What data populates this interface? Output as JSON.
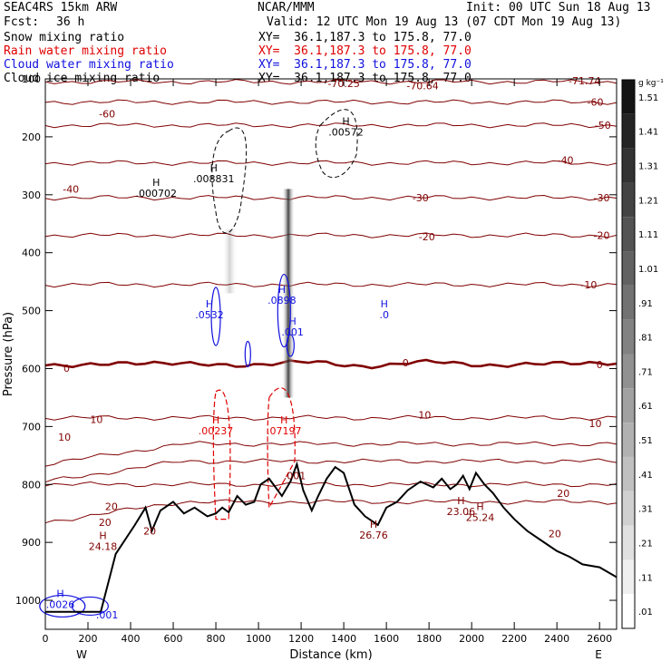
{
  "header": {
    "model": "SEAC4RS 15km ARW",
    "center": "NCAR/MMM",
    "init": "Init: 00 UTC Sun 18 Aug 13",
    "fcst_label": "Fcst:",
    "fcst_value": "36 h",
    "valid": "Valid: 12 UTC Mon 19 Aug 13 (07 CDT Mon 19 Aug 13)",
    "lines": [
      {
        "name": "Snow mixing ratio",
        "xy": "XY=  36.1,187.3 to 175.8, 77.0",
        "color": "#000000"
      },
      {
        "name": "Rain water mixing ratio",
        "xy": "XY=  36.1,187.3 to 175.8, 77.0",
        "color": "#e00000"
      },
      {
        "name": "Cloud water mixing ratio",
        "xy": "XY=  36.1,187.3 to 175.8, 77.0",
        "color": "#1010e0"
      },
      {
        "name": "Cloud ice mixing ratio",
        "xy": "XY=  36.1,187.3 to 175.8, 77.0",
        "color": "#000000"
      }
    ]
  },
  "chart_data": {
    "type": "contour-cross-section",
    "xlabel": "Distance (km)",
    "ylabel": "Pressure (hPa)",
    "xlim": [
      0,
      2680
    ],
    "ylim": [
      1050,
      100
    ],
    "x_ticks": [
      "0",
      "200",
      "400",
      "600",
      "800",
      "1000",
      "1200",
      "1400",
      "1600",
      "1800",
      "2000",
      "2200",
      "2400",
      "2600"
    ],
    "y_ticks": [
      "100",
      "200",
      "300",
      "400",
      "500",
      "600",
      "700",
      "800",
      "900",
      "1000"
    ],
    "end_labels": {
      "left": "W",
      "right": "E"
    },
    "colorbar": {
      "unit": "g kg⁻¹",
      "labels": [
        "1.51",
        "1.41",
        "1.31",
        "1.21",
        "1.11",
        "1.01",
        ".91",
        ".81",
        ".71",
        ".61",
        ".51",
        ".41",
        ".31",
        ".21",
        ".11",
        ".01"
      ]
    },
    "temperature_contours": [
      {
        "value": "-70",
        "pressure": 105
      },
      {
        "value": "-60",
        "pressure": 140
      },
      {
        "value": "-50",
        "pressure": 180
      },
      {
        "value": "-40",
        "pressure": 245
      },
      {
        "value": "-30",
        "pressure": 305
      },
      {
        "value": "-20",
        "pressure": 370
      },
      {
        "value": "-10",
        "pressure": 455
      },
      {
        "value": "0",
        "pressure": 592
      },
      {
        "value": "10",
        "pressure": 685
      },
      {
        "value": "20",
        "pressure": 800
      }
    ],
    "contour_labels": [
      {
        "text": "-70.25",
        "x": 1400,
        "p": 108,
        "color": "#800000"
      },
      {
        "text": "-70.64",
        "x": 1770,
        "p": 112,
        "color": "#800000"
      },
      {
        "text": "-71.74",
        "x": 2530,
        "p": 103,
        "color": "#800000"
      },
      {
        "text": "-60",
        "x": 290,
        "p": 160,
        "color": "#800000"
      },
      {
        "text": "-60",
        "x": 2580,
        "p": 140,
        "color": "#800000"
      },
      {
        "text": "-50",
        "x": 2615,
        "p": 180,
        "color": "#800000"
      },
      {
        "text": "-40",
        "x": 120,
        "p": 290,
        "color": "#800000"
      },
      {
        "text": "-40",
        "x": 2440,
        "p": 240,
        "color": "#800000"
      },
      {
        "text": "-30",
        "x": 1760,
        "p": 305,
        "color": "#800000"
      },
      {
        "text": "-30",
        "x": 2610,
        "p": 305,
        "color": "#800000"
      },
      {
        "text": "-20",
        "x": 1790,
        "p": 372,
        "color": "#800000"
      },
      {
        "text": "-20",
        "x": 2610,
        "p": 370,
        "color": "#800000"
      },
      {
        "text": "-10",
        "x": 2550,
        "p": 455,
        "color": "#800000"
      },
      {
        "text": "0",
        "x": 100,
        "p": 599,
        "color": "#800000"
      },
      {
        "text": "0",
        "x": 1690,
        "p": 590,
        "color": "#800000"
      },
      {
        "text": "0",
        "x": 2600,
        "p": 593,
        "color": "#800000"
      },
      {
        "text": "10",
        "x": 240,
        "p": 688,
        "color": "#800000"
      },
      {
        "text": "10",
        "x": 90,
        "p": 718,
        "color": "#800000"
      },
      {
        "text": "10",
        "x": 1780,
        "p": 680,
        "color": "#800000"
      },
      {
        "text": "10",
        "x": 2580,
        "p": 695,
        "color": "#800000"
      },
      {
        "text": "20",
        "x": 310,
        "p": 838,
        "color": "#800000"
      },
      {
        "text": "20",
        "x": 280,
        "p": 865,
        "color": "#800000"
      },
      {
        "text": "20",
        "x": 490,
        "p": 880,
        "color": "#800000"
      },
      {
        "text": "20",
        "x": 2430,
        "p": 815,
        "color": "#800000"
      },
      {
        "text": "20",
        "x": 2390,
        "p": 885,
        "color": "#800000"
      }
    ],
    "maxima_labels": [
      {
        "h": "H",
        "v": ".000702",
        "x": 520,
        "p": 300,
        "color": "#000000"
      },
      {
        "h": "H",
        "v": ".008831",
        "x": 790,
        "p": 275,
        "color": "#000000"
      },
      {
        "h": "H",
        "v": ".00572",
        "x": 1410,
        "p": 195,
        "color": "#000000"
      },
      {
        "h": "H",
        "v": ".0532",
        "x": 770,
        "p": 510,
        "color": "#1010e0"
      },
      {
        "h": "H",
        "v": ".0898",
        "x": 1110,
        "p": 485,
        "color": "#1010e0"
      },
      {
        "h": "H",
        "v": ".001",
        "x": 1160,
        "p": 540,
        "color": "#1010e0"
      },
      {
        "h": "H",
        "v": ".0",
        "x": 1590,
        "p": 510,
        "color": "#1010e0"
      },
      {
        "h": "H",
        "v": ".00237",
        "x": 800,
        "p": 710,
        "color": "#e00000"
      },
      {
        "h": "H",
        "v": ".07197",
        "x": 1120,
        "p": 710,
        "color": "#e00000"
      },
      {
        "h": "",
        "v": ".001",
        "x": 1170,
        "p": 788,
        "color": "#800000"
      },
      {
        "h": "H",
        "v": "24.18",
        "x": 270,
        "p": 910,
        "color": "#800000"
      },
      {
        "h": "H",
        "v": "26.76",
        "x": 1540,
        "p": 890,
        "color": "#800000"
      },
      {
        "h": "H",
        "v": "23.06",
        "x": 1950,
        "p": 850,
        "color": "#800000"
      },
      {
        "h": "H",
        "v": "25.24",
        "x": 2040,
        "p": 860,
        "color": "#800000"
      },
      {
        "h": "H",
        "v": ".0026",
        "x": 70,
        "p": 1010,
        "color": "#1010e0"
      },
      {
        "h": "",
        ".v": "",
        "v": "",
        "x": 0,
        "p": 0,
        "color": "#000000"
      },
      {
        "h": "",
        "v": ".001",
        "x": 290,
        "p": 1028,
        "color": "#1010e0"
      }
    ],
    "terrain": [
      [
        0,
        1020
      ],
      [
        260,
        1020
      ],
      [
        330,
        920
      ],
      [
        420,
        870
      ],
      [
        470,
        840
      ],
      [
        500,
        880
      ],
      [
        540,
        845
      ],
      [
        600,
        830
      ],
      [
        650,
        850
      ],
      [
        700,
        840
      ],
      [
        760,
        855
      ],
      [
        800,
        850
      ],
      [
        830,
        840
      ],
      [
        860,
        848
      ],
      [
        900,
        820
      ],
      [
        940,
        835
      ],
      [
        980,
        830
      ],
      [
        1010,
        800
      ],
      [
        1050,
        790
      ],
      [
        1080,
        805
      ],
      [
        1110,
        820
      ],
      [
        1150,
        795
      ],
      [
        1180,
        765
      ],
      [
        1210,
        810
      ],
      [
        1250,
        845
      ],
      [
        1280,
        820
      ],
      [
        1320,
        790
      ],
      [
        1360,
        770
      ],
      [
        1400,
        780
      ],
      [
        1450,
        835
      ],
      [
        1500,
        855
      ],
      [
        1560,
        870
      ],
      [
        1600,
        840
      ],
      [
        1650,
        830
      ],
      [
        1700,
        810
      ],
      [
        1760,
        795
      ],
      [
        1820,
        805
      ],
      [
        1860,
        790
      ],
      [
        1900,
        808
      ],
      [
        1930,
        800
      ],
      [
        1960,
        785
      ],
      [
        1990,
        808
      ],
      [
        2020,
        780
      ],
      [
        2060,
        800
      ],
      [
        2100,
        815
      ],
      [
        2150,
        840
      ],
      [
        2200,
        860
      ],
      [
        2260,
        880
      ],
      [
        2320,
        895
      ],
      [
        2400,
        915
      ],
      [
        2460,
        925
      ],
      [
        2520,
        938
      ],
      [
        2600,
        943
      ],
      [
        2680,
        960
      ]
    ]
  }
}
